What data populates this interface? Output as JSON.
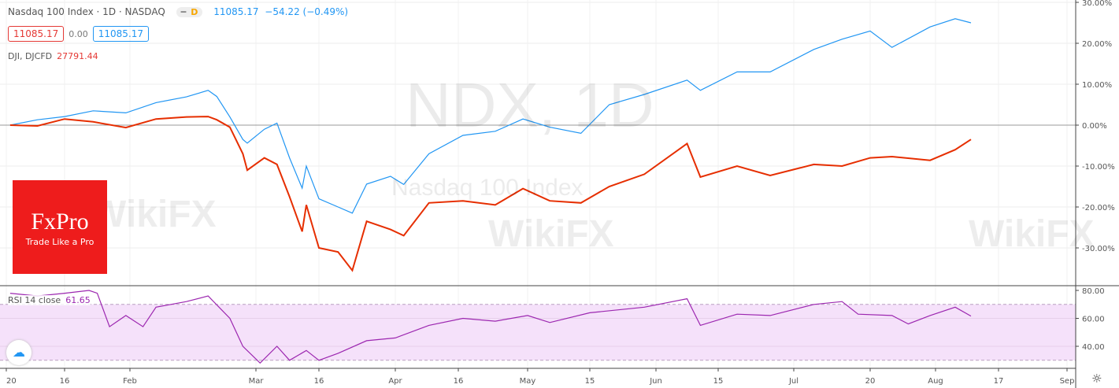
{
  "header": {
    "title": "Nasdaq 100 Index · 1D · NASDAQ",
    "interval_badge": "D",
    "last": "11085.17",
    "change": "−54.22 (−0.49%)",
    "box_left": "11085.17",
    "mid": "0.00",
    "box_right": "11085.17"
  },
  "compare": {
    "name": "DJI, DJCFD",
    "value": "27791.44"
  },
  "rsi": {
    "label": "RSI 14 close",
    "value": "61.65"
  },
  "watermark": {
    "symbol": "NDX, 1D",
    "name": "Nasdaq 100 Index",
    "wikifx": "WikiFX"
  },
  "logo": {
    "name": "FxPro",
    "tagline": "Trade Like a Pro"
  },
  "colors": {
    "ndx": "#2196f3",
    "dji": "#e62e00",
    "rsi": "#9c27b0",
    "rsi_band": "#f5e1fa"
  },
  "chart_data": [
    {
      "type": "line",
      "ylabel": "",
      "y_ticks": [
        "30.00%",
        "20.00%",
        "10.00%",
        "0.00%",
        "-10.00%",
        "-20.00%",
        "-30.00%"
      ],
      "ylim": [
        -31,
        31
      ],
      "x": [
        "2020-01-02",
        "2020-01-09",
        "2020-01-16",
        "2020-01-23",
        "2020-01-31",
        "2020-02-07",
        "2020-02-14",
        "2020-02-19",
        "2020-02-21",
        "2020-02-24",
        "2020-02-27",
        "2020-02-28",
        "2020-03-03",
        "2020-03-06",
        "2020-03-09",
        "2020-03-12",
        "2020-03-13",
        "2020-03-16",
        "2020-03-20",
        "2020-03-23",
        "2020-03-26",
        "2020-03-31",
        "2020-04-03",
        "2020-04-09",
        "2020-04-17",
        "2020-04-24",
        "2020-04-30",
        "2020-05-06",
        "2020-05-13",
        "2020-05-20",
        "2020-05-29",
        "2020-06-08",
        "2020-06-11",
        "2020-06-19",
        "2020-06-26",
        "2020-07-06",
        "2020-07-13",
        "2020-07-20",
        "2020-07-24",
        "2020-07-31",
        "2020-08-06",
        "2020-08-10"
      ],
      "series": [
        {
          "name": "Nasdaq 100 Index",
          "values": [
            0,
            1.3,
            2.1,
            3.5,
            3,
            5.5,
            6.9,
            8.5,
            7,
            2,
            -3.5,
            -4.4,
            -1,
            0.5,
            -8,
            -15.4,
            -10,
            -18,
            -20,
            -21.5,
            -14.4,
            -12.5,
            -14.5,
            -7,
            -2.5,
            -1.5,
            1.5,
            -0.5,
            -2,
            5,
            7.5,
            11,
            8.5,
            13,
            13,
            18.5,
            21,
            23,
            19,
            24,
            26,
            25
          ]
        },
        {
          "name": "DJI, DJCFD",
          "values": [
            0,
            -0.2,
            1.5,
            0.8,
            -0.6,
            1.5,
            2,
            2.1,
            1.3,
            -0.5,
            -7,
            -11,
            -8,
            -9.6,
            -17.5,
            -26,
            -19.5,
            -30,
            -31,
            -35.5,
            -23.5,
            -25.5,
            -27,
            -19,
            -18.5,
            -19.5,
            -15.5,
            -18.5,
            -19,
            -15,
            -12,
            -4.5,
            -12.7,
            -10,
            -12.3,
            -9.6,
            -10,
            -8,
            -7.7,
            -8.6,
            -6,
            -3.5
          ]
        }
      ]
    },
    {
      "type": "line",
      "title": "RSI 14 close",
      "y_ticks": [
        "80.00",
        "60.00",
        "40.00"
      ],
      "bands": [
        30,
        70
      ],
      "x": [
        "2020-01-02",
        "2020-01-09",
        "2020-01-16",
        "2020-01-22",
        "2020-01-24",
        "2020-01-27",
        "2020-01-31",
        "2020-02-04",
        "2020-02-07",
        "2020-02-14",
        "2020-02-19",
        "2020-02-24",
        "2020-02-27",
        "2020-03-02",
        "2020-03-06",
        "2020-03-09",
        "2020-03-13",
        "2020-03-16",
        "2020-03-20",
        "2020-03-26",
        "2020-04-01",
        "2020-04-09",
        "2020-04-17",
        "2020-04-24",
        "2020-05-01",
        "2020-05-06",
        "2020-05-15",
        "2020-05-29",
        "2020-06-08",
        "2020-06-11",
        "2020-06-19",
        "2020-06-26",
        "2020-07-06",
        "2020-07-13",
        "2020-07-17",
        "2020-07-24",
        "2020-07-27",
        "2020-07-31",
        "2020-08-06",
        "2020-08-10"
      ],
      "values": [
        78,
        76,
        78,
        80,
        78,
        54,
        62,
        54,
        68,
        72,
        76,
        60,
        40,
        28,
        40,
        30,
        37,
        30,
        35,
        44,
        46,
        55,
        60,
        58,
        62,
        57,
        64,
        68,
        74,
        55,
        63,
        62,
        70,
        72,
        63,
        62,
        56,
        62,
        68,
        61.65
      ]
    },
    {
      "type": "axis",
      "x_ticks": [
        {
          "d": "2020-01-01",
          "label": "20"
        },
        {
          "d": "2020-01-16",
          "label": "16"
        },
        {
          "d": "2020-02-01",
          "label": "Feb"
        },
        {
          "d": "2020-03-01",
          "label": "Mar"
        },
        {
          "d": "2020-03-16",
          "label": "16"
        },
        {
          "d": "2020-04-01",
          "label": "Apr"
        },
        {
          "d": "2020-04-16",
          "label": "16"
        },
        {
          "d": "2020-05-01",
          "label": "May"
        },
        {
          "d": "2020-05-15",
          "label": "15"
        },
        {
          "d": "2020-06-01",
          "label": "Jun"
        },
        {
          "d": "2020-06-15",
          "label": "15"
        },
        {
          "d": "2020-07-01",
          "label": "Jul"
        },
        {
          "d": "2020-07-20",
          "label": "20"
        },
        {
          "d": "2020-08-01",
          "label": "Aug"
        },
        {
          "d": "2020-08-17",
          "label": "17"
        },
        {
          "d": "2020-09-01",
          "label": "Sep"
        }
      ]
    }
  ]
}
